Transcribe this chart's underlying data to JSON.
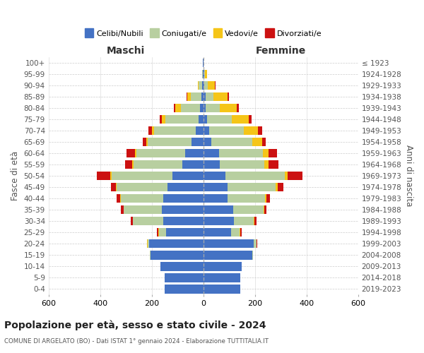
{
  "age_groups": [
    "100+",
    "95-99",
    "90-94",
    "85-89",
    "80-84",
    "75-79",
    "70-74",
    "65-69",
    "60-64",
    "55-59",
    "50-54",
    "45-49",
    "40-44",
    "35-39",
    "30-34",
    "25-29",
    "20-24",
    "15-19",
    "10-14",
    "5-9",
    "0-4"
  ],
  "birth_years": [
    "≤ 1923",
    "1924-1928",
    "1929-1933",
    "1934-1938",
    "1939-1943",
    "1944-1948",
    "1949-1953",
    "1954-1958",
    "1959-1963",
    "1964-1968",
    "1969-1973",
    "1974-1978",
    "1979-1983",
    "1984-1988",
    "1989-1993",
    "1994-1998",
    "1999-2003",
    "2004-2008",
    "2009-2013",
    "2014-2018",
    "2019-2023"
  ],
  "maschi": {
    "celibi": [
      1,
      3,
      5,
      8,
      12,
      18,
      30,
      45,
      70,
      80,
      120,
      140,
      155,
      160,
      155,
      145,
      210,
      205,
      165,
      150,
      150
    ],
    "coniugati": [
      0,
      3,
      12,
      40,
      75,
      130,
      160,
      170,
      190,
      190,
      235,
      195,
      165,
      148,
      118,
      28,
      5,
      2,
      0,
      0,
      0
    ],
    "vedovi": [
      0,
      0,
      5,
      15,
      22,
      12,
      8,
      5,
      5,
      5,
      5,
      3,
      2,
      1,
      1,
      2,
      2,
      0,
      0,
      0,
      0
    ],
    "divorziati": [
      0,
      0,
      0,
      3,
      5,
      10,
      14,
      14,
      32,
      28,
      52,
      20,
      13,
      10,
      8,
      5,
      2,
      0,
      0,
      0,
      0
    ]
  },
  "femmine": {
    "nubili": [
      1,
      3,
      4,
      8,
      10,
      15,
      22,
      32,
      60,
      65,
      85,
      95,
      95,
      115,
      118,
      108,
      195,
      190,
      150,
      143,
      143
    ],
    "coniugate": [
      0,
      4,
      12,
      32,
      55,
      95,
      135,
      158,
      172,
      172,
      232,
      185,
      145,
      118,
      78,
      33,
      10,
      2,
      0,
      0,
      0
    ],
    "vedove": [
      0,
      8,
      30,
      55,
      65,
      65,
      55,
      38,
      22,
      16,
      10,
      8,
      5,
      3,
      2,
      2,
      1,
      0,
      0,
      0,
      0
    ],
    "divorziate": [
      0,
      0,
      2,
      5,
      8,
      12,
      15,
      15,
      32,
      38,
      58,
      22,
      13,
      10,
      8,
      5,
      2,
      0,
      0,
      0,
      0
    ]
  },
  "colors": {
    "celibi": "#4472C4",
    "coniugati": "#b8cfa0",
    "vedovi": "#f5c518",
    "divorziati": "#cc1111"
  },
  "xlim": 600,
  "title": "Popolazione per età, sesso e stato civile - 2024",
  "subtitle": "COMUNE DI ARGELATO (BO) - Dati ISTAT 1° gennaio 2024 - Elaborazione TUTTITALIA.IT",
  "ylabel": "Fasce di età",
  "ylabel_right": "Anni di nascita",
  "xlabel_maschi": "Maschi",
  "xlabel_femmine": "Femmine"
}
